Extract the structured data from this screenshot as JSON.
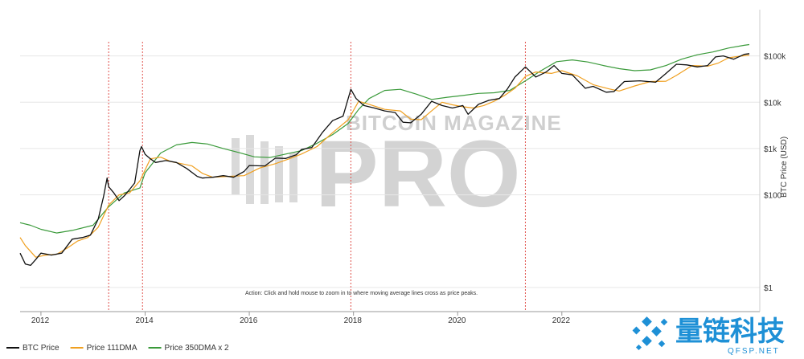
{
  "chart_data": {
    "type": "line",
    "title": "",
    "ylabel": "BTC Price (USD)",
    "y_scale": "log",
    "ylim": [
      0.3,
      1000000
    ],
    "xlim": [
      2011.6,
      2025.8
    ],
    "y_ticks": [
      {
        "value": 1,
        "label": "$1"
      },
      {
        "value": 100,
        "label": "$100"
      },
      {
        "value": 1000,
        "label": "$1k"
      },
      {
        "value": 10000,
        "label": "$10k"
      },
      {
        "value": 100000,
        "label": "$100k"
      }
    ],
    "x_ticks": [
      {
        "value": 2012,
        "label": "2012"
      },
      {
        "value": 2014,
        "label": "2014"
      },
      {
        "value": 2016,
        "label": "2016"
      },
      {
        "value": 2018,
        "label": "2018"
      },
      {
        "value": 2020,
        "label": "2020"
      },
      {
        "value": 2022,
        "label": "2022"
      }
    ],
    "grid": {
      "horizontal": true,
      "vertical": false
    },
    "legend_position": "bottom-left",
    "series": [
      {
        "name": "BTC Price",
        "color": "#111111",
        "x": [
          2011.6,
          2011.7,
          2011.8,
          2011.9,
          2012.0,
          2012.2,
          2012.4,
          2012.6,
          2012.8,
          2012.95,
          2013.1,
          2013.2,
          2013.27,
          2013.3,
          2013.4,
          2013.5,
          2013.6,
          2013.7,
          2013.8,
          2013.9,
          2013.93,
          2014.0,
          2014.1,
          2014.2,
          2014.4,
          2014.6,
          2014.8,
          2015.0,
          2015.1,
          2015.3,
          2015.5,
          2015.7,
          2015.9,
          2016.0,
          2016.3,
          2016.5,
          2016.7,
          2016.9,
          2017.0,
          2017.2,
          2017.4,
          2017.6,
          2017.8,
          2017.95,
          2018.05,
          2018.2,
          2018.4,
          2018.6,
          2018.8,
          2018.95,
          2019.1,
          2019.3,
          2019.5,
          2019.7,
          2019.9,
          2020.1,
          2020.2,
          2020.4,
          2020.6,
          2020.8,
          2020.95,
          2021.1,
          2021.3,
          2021.5,
          2021.7,
          2021.85,
          2022.0,
          2022.2,
          2022.45,
          2022.6,
          2022.85,
          2023.0,
          2023.2,
          2023.5,
          2023.8,
          2024.0,
          2024.2,
          2024.4,
          2024.6,
          2024.8,
          2024.95,
          2025.1,
          2025.3,
          2025.5,
          2025.6
        ],
        "y": [
          5.5,
          3.2,
          3.0,
          4.0,
          5.5,
          5.0,
          5.5,
          11,
          12,
          13.5,
          30,
          90,
          230,
          150,
          110,
          75,
          95,
          130,
          180,
          900,
          1100,
          750,
          600,
          500,
          550,
          500,
          370,
          250,
          230,
          240,
          260,
          240,
          320,
          430,
          420,
          620,
          610,
          730,
          950,
          1050,
          2200,
          4000,
          5000,
          19000,
          12000,
          8500,
          7500,
          6500,
          6000,
          3700,
          3600,
          5500,
          10500,
          8500,
          7500,
          8500,
          5500,
          9000,
          11000,
          12000,
          19000,
          35000,
          58000,
          35000,
          45000,
          62000,
          42000,
          39000,
          20000,
          22000,
          16500,
          17000,
          28000,
          29000,
          27000,
          42000,
          66000,
          64000,
          58000,
          62000,
          95000,
          100000,
          85000,
          108000,
          112000
        ]
      },
      {
        "name": "Price 111DMA",
        "color": "#f0a020",
        "x": [
          2011.6,
          2011.7,
          2011.9,
          2012.1,
          2012.3,
          2012.5,
          2012.7,
          2012.9,
          2013.1,
          2013.3,
          2013.5,
          2013.7,
          2013.9,
          2014.1,
          2014.3,
          2014.5,
          2014.7,
          2014.9,
          2015.1,
          2015.3,
          2015.6,
          2015.9,
          2016.2,
          2016.5,
          2016.8,
          2017.0,
          2017.3,
          2017.6,
          2017.9,
          2018.1,
          2018.3,
          2018.6,
          2018.9,
          2019.1,
          2019.3,
          2019.5,
          2019.7,
          2019.9,
          2020.1,
          2020.3,
          2020.5,
          2020.7,
          2020.9,
          2021.1,
          2021.3,
          2021.5,
          2021.8,
          2022.0,
          2022.3,
          2022.6,
          2022.9,
          2023.1,
          2023.4,
          2023.7,
          2024.0,
          2024.2,
          2024.5,
          2024.8,
          2025.0,
          2025.2,
          2025.4,
          2025.6
        ],
        "y": [
          12,
          8,
          4.5,
          5,
          5.2,
          7,
          10,
          12,
          20,
          60,
          100,
          110,
          200,
          600,
          650,
          520,
          470,
          420,
          290,
          240,
          250,
          260,
          380,
          470,
          620,
          760,
          1100,
          2200,
          4200,
          10500,
          9000,
          7000,
          6500,
          4300,
          4200,
          6500,
          10000,
          8800,
          8000,
          7500,
          8500,
          10500,
          14000,
          20000,
          36000,
          45000,
          42000,
          48000,
          37000,
          24000,
          19500,
          17500,
          22500,
          28000,
          28500,
          38000,
          62000,
          60000,
          70000,
          91000,
          98000,
          104000
        ]
      },
      {
        "name": "Price 350DMA x 2",
        "color": "#3a9a3a",
        "x": [
          2011.6,
          2011.8,
          2012.0,
          2012.3,
          2012.6,
          2013.0,
          2013.3,
          2013.6,
          2013.9,
          2014.0,
          2014.3,
          2014.6,
          2014.9,
          2015.2,
          2015.5,
          2015.8,
          2016.1,
          2016.4,
          2016.7,
          2017.0,
          2017.3,
          2017.6,
          2017.9,
          2018.1,
          2018.3,
          2018.6,
          2018.9,
          2019.2,
          2019.5,
          2019.8,
          2020.1,
          2020.4,
          2020.7,
          2021.0,
          2021.3,
          2021.6,
          2021.9,
          2022.2,
          2022.5,
          2022.8,
          2023.1,
          2023.4,
          2023.7,
          2024.0,
          2024.3,
          2024.6,
          2024.9,
          2025.2,
          2025.5,
          2025.6
        ],
        "y": [
          25,
          22,
          18,
          15,
          17,
          22,
          55,
          110,
          140,
          300,
          800,
          1200,
          1350,
          1250,
          1000,
          820,
          660,
          640,
          760,
          900,
          1300,
          2000,
          3500,
          7000,
          12000,
          18000,
          19000,
          15000,
          11500,
          12800,
          14000,
          15500,
          16000,
          18000,
          29000,
          48000,
          75000,
          82000,
          74000,
          62000,
          53000,
          48000,
          50000,
          62000,
          85000,
          106000,
          122000,
          148000,
          170000,
          176000
        ]
      }
    ],
    "peak_markers": [
      2013.3,
      2013.95,
      2017.95,
      2021.3
    ],
    "annotations": [
      "Action: Click and hold mouse to zoom in to where moving average lines cross as price peaks."
    ]
  },
  "watermark": {
    "line1": "BITCOIN MAGAZINE",
    "line2": "PRO"
  },
  "corner_logo": {
    "name": "量链科技",
    "url": "QFSP.NET",
    "color": "#1e90d6"
  }
}
